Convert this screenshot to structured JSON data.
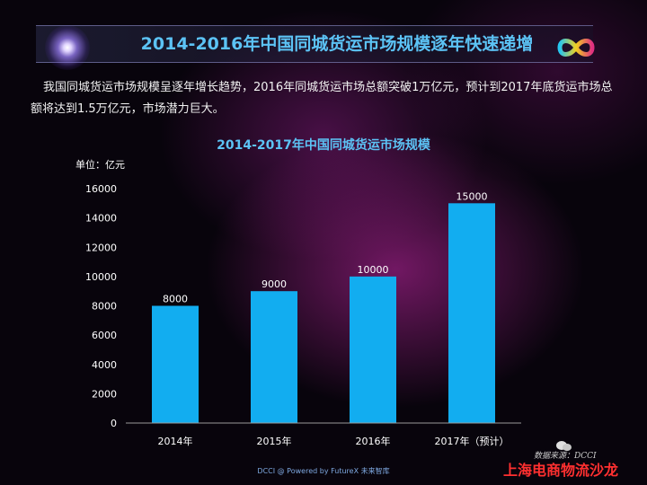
{
  "header": {
    "title": "2014-2016年中国同城货运市场规模逐年快速递增"
  },
  "intro_text": "我国同城货运市场规模呈逐年增长趋势，2016年同城货运市场总额突破1万亿元，预计到2017年底货运市场总额将达到1.5万亿元，市场潜力巨大。",
  "chart_data": {
    "type": "bar",
    "title": "2014-2017年中国同城货运市场规模",
    "unit_label": "单位：亿元",
    "categories": [
      "2014年",
      "2015年",
      "2016年",
      "2017年（预计）"
    ],
    "values": [
      8000,
      9000,
      10000,
      15000
    ],
    "ylim": [
      0,
      16000
    ],
    "yticks": [
      0,
      2000,
      4000,
      6000,
      8000,
      10000,
      12000,
      14000,
      16000
    ],
    "bar_color": "#12adf0",
    "grid": false
  },
  "footer": {
    "credit": "DCCI @ Powered by FutureX 未来智库",
    "source_text": "数据来源：DCCI",
    "watermark": "上海电商物流沙龙"
  },
  "colors": {
    "title": "#5cc3f5",
    "chart_title": "#5cc3f5",
    "watermark": "#ff3030"
  }
}
